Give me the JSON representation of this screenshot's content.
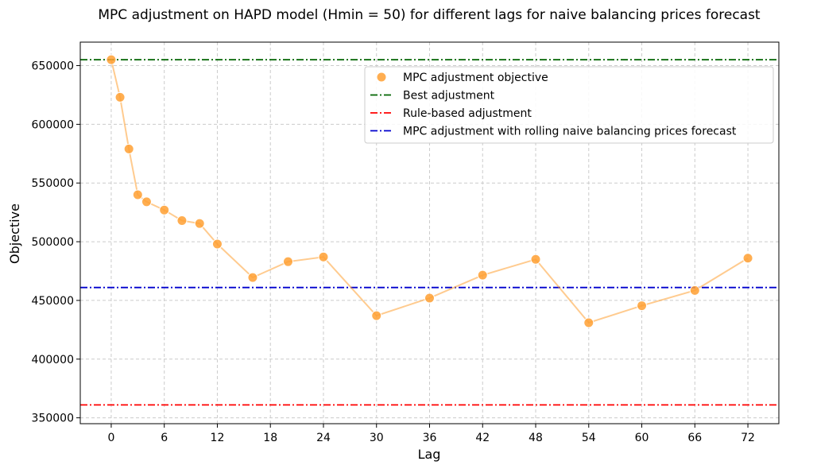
{
  "chart_data": {
    "type": "line",
    "title": "MPC adjustment on HAPD model (Hmin = 50) for different lags for naive balancing prices forecast",
    "xlabel": "Lag",
    "ylabel": "Objective",
    "xlim": [
      -3.5,
      75.5
    ],
    "ylim": [
      345000,
      670000
    ],
    "xticks": [
      0,
      6,
      12,
      18,
      24,
      30,
      36,
      42,
      48,
      54,
      60,
      66,
      72
    ],
    "yticks": [
      350000,
      400000,
      450000,
      500000,
      550000,
      600000,
      650000
    ],
    "grid": true,
    "legend_position": "upper-right",
    "series": [
      {
        "name": "MPC adjustment objective",
        "kind": "scatter+line",
        "color": "#FFA033",
        "x": [
          0,
          1,
          2,
          3,
          4,
          6,
          8,
          10,
          12,
          16,
          20,
          24,
          30,
          36,
          42,
          48,
          54,
          60,
          66,
          72
        ],
        "y": [
          655000,
          623000,
          579000,
          540000,
          534000,
          527000,
          518000,
          515500,
          498000,
          469500,
          483000,
          487000,
          437000,
          452000,
          471500,
          485000,
          431000,
          445500,
          458500,
          486000
        ]
      }
    ],
    "reference_lines": [
      {
        "name": "Best adjustment",
        "y": 655000,
        "color": "#006400",
        "style": "dashdot"
      },
      {
        "name": "Rule-based adjustment",
        "y": 361000,
        "color": "#FF0000",
        "style": "dashdot"
      },
      {
        "name": "MPC adjustment with rolling naive balancing prices forecast",
        "y": 461000,
        "color": "#0000CD",
        "style": "dashdot"
      }
    ]
  }
}
